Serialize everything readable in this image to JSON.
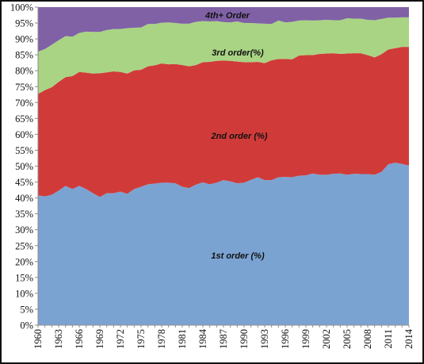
{
  "chart_data": {
    "type": "area",
    "stacked": true,
    "title": "",
    "xlabel": "",
    "ylabel": "",
    "ylim": [
      0,
      100
    ],
    "y_ticks": [
      "0%",
      "5%",
      "10%",
      "15%",
      "20%",
      "25%",
      "30%",
      "35%",
      "40%",
      "45%",
      "50%",
      "55%",
      "60%",
      "65%",
      "70%",
      "75%",
      "80%",
      "85%",
      "90%",
      "95%",
      "100%"
    ],
    "x_ticks": [
      "1960",
      "1963",
      "1966",
      "1969",
      "1972",
      "1975",
      "1978",
      "1981",
      "1984",
      "1987",
      "1990",
      "1993",
      "1996",
      "1999",
      "2002",
      "2005",
      "2008",
      "2011",
      "2014"
    ],
    "x": [
      1960,
      1961,
      1962,
      1963,
      1964,
      1965,
      1966,
      1967,
      1968,
      1969,
      1970,
      1971,
      1972,
      1973,
      1974,
      1975,
      1976,
      1977,
      1978,
      1979,
      1980,
      1981,
      1982,
      1983,
      1984,
      1985,
      1986,
      1987,
      1988,
      1989,
      1990,
      1991,
      1992,
      1993,
      1994,
      1995,
      1996,
      1997,
      1998,
      1999,
      2000,
      2001,
      2002,
      2003,
      2004,
      2005,
      2006,
      2007,
      2008,
      2009,
      2010,
      2011,
      2012,
      2013,
      2014
    ],
    "series": [
      {
        "name": "1st order  (%)",
        "color": "#7ba3d2",
        "values": [
          40.8,
          40.5,
          41.0,
          42.3,
          43.8,
          42.8,
          43.8,
          42.8,
          41.5,
          40.3,
          41.5,
          41.5,
          42.0,
          41.3,
          42.8,
          43.5,
          44.3,
          44.5,
          44.8,
          44.8,
          44.6,
          43.5,
          43.1,
          44.2,
          44.9,
          44.3,
          44.8,
          45.6,
          45.2,
          44.6,
          44.8,
          45.7,
          46.5,
          45.6,
          45.6,
          46.5,
          46.6,
          46.5,
          47.0,
          47.1,
          47.7,
          47.3,
          47.3,
          47.6,
          47.7,
          47.3,
          47.6,
          47.5,
          47.5,
          47.3,
          48.2,
          50.6,
          51.1,
          50.7,
          50.2
        ]
      },
      {
        "name": "2nd order  (%)",
        "color": "#d03b3a",
        "values": [
          31.9,
          33.4,
          33.8,
          34.2,
          34.2,
          35.5,
          35.8,
          36.6,
          37.6,
          38.9,
          38.0,
          38.3,
          37.6,
          37.8,
          37.3,
          36.8,
          37.1,
          37.2,
          37.5,
          37.2,
          37.5,
          38.3,
          38.3,
          37.6,
          37.8,
          38.5,
          38.3,
          37.6,
          37.9,
          38.3,
          37.9,
          37.0,
          36.3,
          36.8,
          37.7,
          37.2,
          37.1,
          37.1,
          37.8,
          37.8,
          37.2,
          38.0,
          38.1,
          37.9,
          37.6,
          38.1,
          37.9,
          38.0,
          37.4,
          36.9,
          37.0,
          36.1,
          36.0,
          36.8,
          37.3
        ]
      },
      {
        "name": "3rd order(%)",
        "color": "#a9d483",
        "values": [
          13.3,
          12.9,
          13.4,
          13.1,
          12.9,
          12.4,
          12.3,
          12.9,
          13.1,
          13.0,
          13.3,
          13.3,
          13.5,
          14.3,
          13.4,
          13.3,
          13.3,
          13.0,
          12.8,
          13.2,
          12.9,
          13.0,
          13.4,
          13.6,
          12.9,
          12.7,
          12.5,
          12.1,
          12.1,
          12.6,
          12.3,
          12.3,
          12.1,
          12.4,
          11.4,
          12.1,
          11.5,
          11.8,
          11.0,
          11.0,
          10.9,
          10.6,
          10.6,
          10.4,
          10.6,
          11.1,
          10.9,
          10.9,
          11.1,
          11.7,
          11.1,
          10.0,
          9.6,
          9.3,
          9.3
        ]
      },
      {
        "name": "4th+ Order",
        "color": "#8061a6",
        "values": [
          14.0,
          13.2,
          11.8,
          10.4,
          9.1,
          9.3,
          8.1,
          7.7,
          7.8,
          7.8,
          7.2,
          6.9,
          6.9,
          6.6,
          6.5,
          6.4,
          5.3,
          5.3,
          4.9,
          4.8,
          5.0,
          5.2,
          5.2,
          4.6,
          4.4,
          4.5,
          4.4,
          4.7,
          4.8,
          4.5,
          5.0,
          5.0,
          5.1,
          5.2,
          5.3,
          4.2,
          4.8,
          4.6,
          4.2,
          4.1,
          4.2,
          4.1,
          4.0,
          4.1,
          4.1,
          3.5,
          3.6,
          3.6,
          4.0,
          4.1,
          3.7,
          3.3,
          3.3,
          3.2,
          3.2
        ]
      }
    ]
  }
}
